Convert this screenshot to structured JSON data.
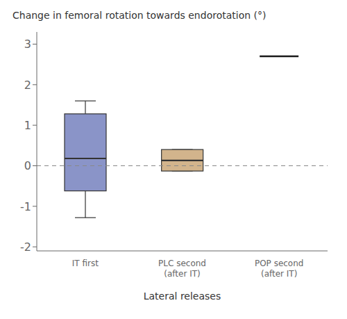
{
  "chart_data": {
    "type": "box",
    "title": "Change in femoral rotation towards endorotation (°)",
    "xlabel": "Lateral releases",
    "categories": [
      "IT first",
      "PLC second\n(after IT)",
      "POP second\n(after IT)"
    ],
    "ylim": [
      -2.1,
      3.3
    ],
    "yticks": [
      -2,
      -1,
      0,
      1,
      2,
      3
    ],
    "boxes": [
      {
        "q1": -0.62,
        "median": 0.18,
        "q3": 1.28,
        "whisker_low": -1.28,
        "whisker_high": 1.6,
        "color": "#8A94C8"
      },
      {
        "q1": -0.13,
        "median": 0.13,
        "q3": 0.4,
        "whisker_low": -0.13,
        "whisker_high": 0.4,
        "color": "#D2B48C"
      },
      {
        "value": 2.7,
        "color": "#1a1a1a"
      }
    ],
    "reference_line": {
      "y": 0,
      "color": "#888888",
      "line_style": "dashed"
    }
  }
}
